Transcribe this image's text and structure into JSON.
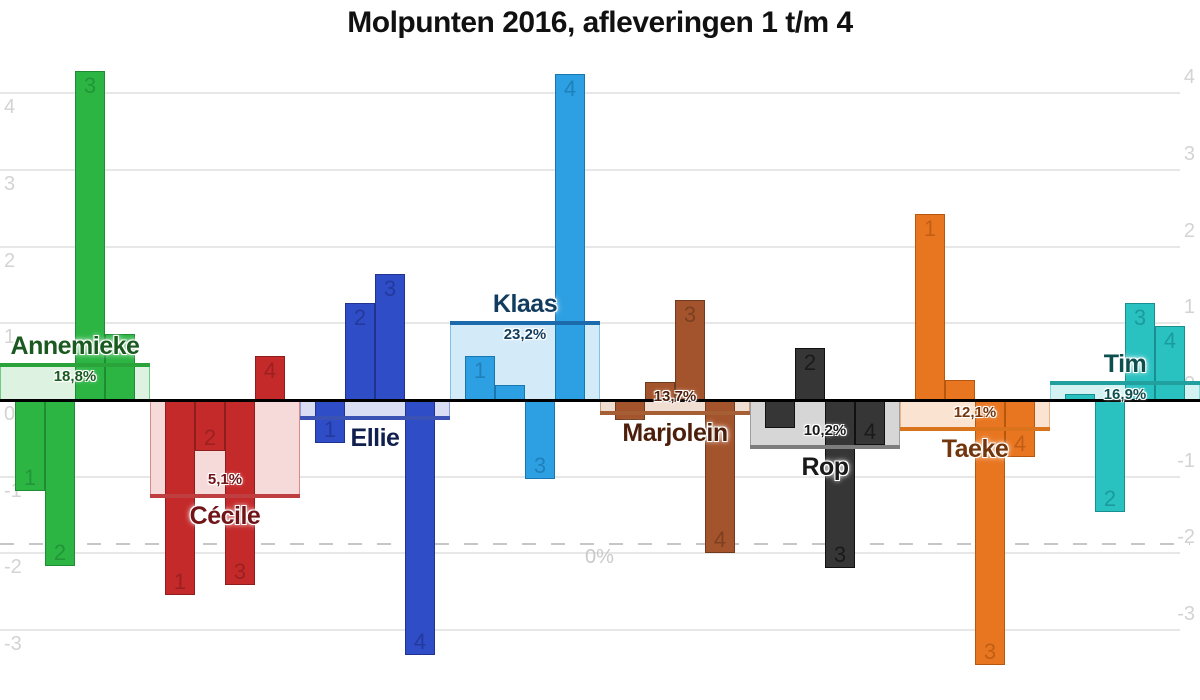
{
  "title": "Molpunten 2016, afleveringen 1 t/m 4",
  "axis": {
    "primary_ticks": [
      4,
      3,
      2,
      1,
      0,
      -1,
      -2,
      -3
    ],
    "secondary_zero_label": "0%"
  },
  "chart_data": {
    "type": "bar",
    "title": "Molpunten 2016, afleveringen 1 t/m 4",
    "categories": [
      "1",
      "2",
      "3",
      "4"
    ],
    "categories_meaning": "aflevering (episode) number, grouped per candidate",
    "ylim": [
      -3.9,
      4.35
    ],
    "y_ticks": [
      4,
      3,
      2,
      1,
      0,
      -1,
      -2,
      -3
    ],
    "grid": true,
    "secondary_axis": {
      "unit": "%",
      "zero_line_label": "0%",
      "zero_line_value_primary": -1.88,
      "pct_per_primary_unit": 8.03
    },
    "series": [
      {
        "name": "Annemieke",
        "values": [
          -1.19,
          -2.16,
          4.29,
          0.86
        ],
        "percent": 18.8,
        "percent_label": "18,8%",
        "percent_label_shown": true,
        "bar_labels_shown": [
          true,
          true,
          true,
          false
        ],
        "color": "#2db544",
        "dark": "#1f8c33",
        "band_fill": "#ddf2e0",
        "band_edge": "#6fcc83",
        "line": "#2aa33b",
        "text": "#1a5a20"
      },
      {
        "name": "Cécile",
        "values": [
          -2.54,
          -0.66,
          -2.41,
          0.58
        ],
        "percent": 5.1,
        "percent_label": "5,1%",
        "percent_label_shown": true,
        "bar_labels_shown": [
          true,
          true,
          true,
          true
        ],
        "color": "#c52a2b",
        "dark": "#8f1d1d",
        "band_fill": "#f6d9d9",
        "band_edge": "#da8a8a",
        "line": "#bf3e40",
        "text": "#701418"
      },
      {
        "name": "Ellie",
        "values": [
          -0.56,
          1.27,
          1.64,
          -3.33
        ],
        "percent": 13.2,
        "percent_label": "",
        "percent_label_shown": false,
        "bar_labels_shown": [
          true,
          true,
          true,
          true
        ],
        "color": "#2f4dc6",
        "dark": "#1f338f",
        "band_fill": "#d9def4",
        "band_edge": "#8d9bd9",
        "line": "#3a52b4",
        "text": "#111f4f"
      },
      {
        "name": "Klaas",
        "values": [
          0.58,
          0.19,
          -1.03,
          4.25
        ],
        "percent": 23.2,
        "percent_label": "23,2%",
        "percent_label_shown": true,
        "bar_labels_shown": [
          true,
          false,
          true,
          true
        ],
        "color": "#2da0e3",
        "dark": "#1b76ad",
        "band_fill": "#d3eaf9",
        "band_edge": "#7fc2ea",
        "line": "#1b6aab",
        "text": "#123c5e"
      },
      {
        "name": "Marjolein",
        "values": [
          -0.26,
          0.24,
          1.3,
          -2.0
        ],
        "percent": 13.7,
        "percent_label": "13,7%",
        "percent_label_shown": true,
        "bar_labels_shown": [
          false,
          false,
          true,
          true
        ],
        "color": "#a4542c",
        "dark": "#6f3a1e",
        "band_fill": "#f1ded2",
        "band_edge": "#c89a7e",
        "line": "#a65e34",
        "text": "#4d1f0a"
      },
      {
        "name": "Rop",
        "values": [
          -0.37,
          0.68,
          -2.19,
          -0.59
        ],
        "percent": 10.2,
        "percent_label": "10,2%",
        "percent_label_shown": true,
        "bar_labels_shown": [
          false,
          true,
          true,
          true
        ],
        "color": "#363636",
        "dark": "#111111",
        "band_fill": "#d6d6d6",
        "band_edge": "#9e9e9e",
        "line": "#7d7d7d",
        "text": "#191919"
      },
      {
        "name": "Taeke",
        "values": [
          2.43,
          0.26,
          -3.46,
          -0.74
        ],
        "percent": 12.1,
        "percent_label": "12,1%",
        "percent_label_shown": true,
        "bar_labels_shown": [
          true,
          false,
          true,
          true
        ],
        "color": "#e87621",
        "dark": "#b5570f",
        "band_fill": "#fae3d0",
        "band_edge": "#f0b183",
        "line": "#d9731c",
        "text": "#73350b"
      },
      {
        "name": "Tim",
        "values": [
          0.08,
          -1.46,
          1.26,
          0.97
        ],
        "percent": 16.9,
        "percent_label": "16,9%",
        "percent_label_shown": true,
        "bar_labels_shown": [
          false,
          true,
          true,
          true
        ],
        "color": "#2ac1c1",
        "dark": "#178f8f",
        "band_fill": "#d4f2f2",
        "band_edge": "#85dada",
        "line": "#22a0a0",
        "text": "#0d4f4f"
      }
    ]
  }
}
